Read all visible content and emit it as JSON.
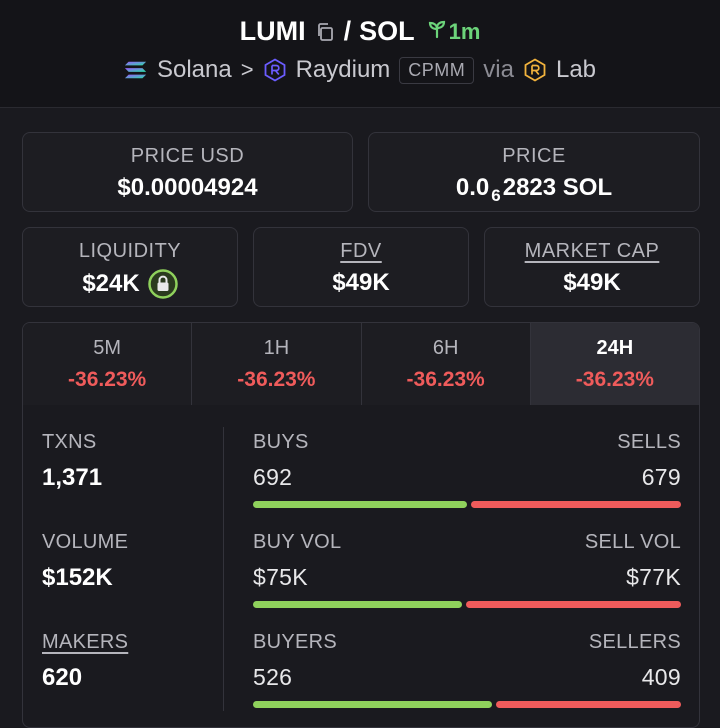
{
  "header": {
    "token": "LUMI",
    "slash": "/",
    "quote": "SOL",
    "age": "1m",
    "chain": "Solana",
    "chevron": ">",
    "dex": "Raydium",
    "pool_type": "CPMM",
    "via": "via",
    "launchpad": "Lab",
    "colors": {
      "age": "#6cd47a",
      "raydium": "#6b5cff",
      "lab": "#f2b33d"
    }
  },
  "price_usd": {
    "label": "PRICE USD",
    "value": "$0.00004924"
  },
  "price": {
    "label": "PRICE",
    "prefix": "0.0",
    "zeros": "6",
    "suffix": "2823 SOL"
  },
  "liquidity": {
    "label": "LIQUIDITY",
    "value": "$24K",
    "icon": "lock-icon"
  },
  "fdv": {
    "label": "FDV",
    "value": "$49K"
  },
  "market_cap": {
    "label": "MARKET CAP",
    "value": "$49K"
  },
  "tabs": [
    {
      "label": "5M",
      "change": "-36.23%"
    },
    {
      "label": "1H",
      "change": "-36.23%"
    },
    {
      "label": "6H",
      "change": "-36.23%"
    },
    {
      "label": "24H",
      "change": "-36.23%",
      "active": true
    }
  ],
  "stats": {
    "txns": {
      "label": "TXNS",
      "value": "1,371"
    },
    "volume": {
      "label": "VOLUME",
      "value": "$152K"
    },
    "makers": {
      "label": "MAKERS",
      "value": "620"
    },
    "buys": {
      "left_label": "BUYS",
      "right_label": "SELLS",
      "left": "692",
      "right": "679",
      "left_fraction": 0.505
    },
    "vol": {
      "left_label": "BUY VOL",
      "right_label": "SELL VOL",
      "left": "$75K",
      "right": "$77K",
      "left_fraction": 0.493
    },
    "buyers": {
      "left_label": "BUYERS",
      "right_label": "SELLERS",
      "left": "526",
      "right": "409",
      "left_fraction": 0.563
    }
  },
  "colors": {
    "positive": "#8fd15c",
    "negative": "#ef5b5b"
  }
}
